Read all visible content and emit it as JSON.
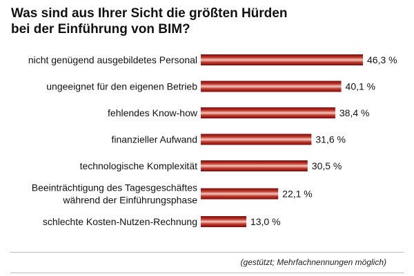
{
  "title_lines": [
    "Was sind aus Ihrer Sicht die größten Hürden",
    "bei der Einführung von BIM?"
  ],
  "note": "(gestützt; Mehrfachnennungen möglich)",
  "colors": {
    "bar_dark": "#7a0a0a",
    "bar_light": "#f2c9c0",
    "bar_mid": "#c0392b"
  },
  "chart_data": {
    "type": "bar",
    "orientation": "horizontal",
    "categories": [
      [
        "nicht genügend ausgebildetes Personal"
      ],
      [
        "ungeeignet für den eigenen Betrieb"
      ],
      [
        "fehlendes Know-how"
      ],
      [
        "finanzieller Aufwand"
      ],
      [
        "technologische Komplexität"
      ],
      [
        "Beeinträchtigung des Tagesgeschäftes",
        "während der Einführungsphase"
      ],
      [
        "schlechte Kosten-Nutzen-Rechnung"
      ]
    ],
    "values": [
      46.3,
      40.1,
      38.4,
      31.6,
      30.5,
      22.1,
      13.0
    ],
    "value_labels": [
      "46,3 %",
      "40,1 %",
      "38,4 %",
      "31,6 %",
      "30,5 %",
      "22,1 %",
      "13,0 %"
    ],
    "xlim": [
      0,
      46.3
    ],
    "grid": false,
    "legend": false
  }
}
